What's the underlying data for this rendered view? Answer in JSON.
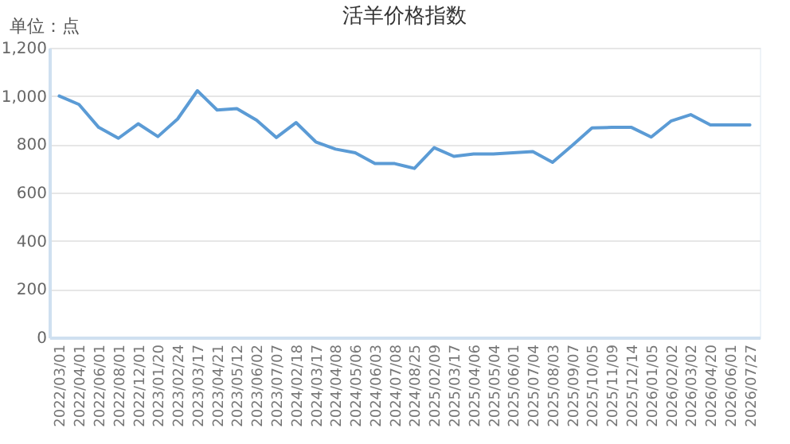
{
  "chart_data": {
    "type": "line",
    "title": "活羊价格指数",
    "annotations": [
      "单位：点"
    ],
    "categories": [
      "2022/03/01",
      "2022/04/01",
      "2022/06/01",
      "2022/08/01",
      "2022/12/01",
      "2023/01/20",
      "2023/02/24",
      "2023/03/17",
      "2023/04/21",
      "2023/05/12",
      "2023/06/02",
      "2023/07/07",
      "2024/02/18",
      "2024/03/17",
      "2024/04/08",
      "2024/05/06",
      "2024/06/03",
      "2024/07/08",
      "2024/08/25",
      "2025/02/09",
      "2025/03/17",
      "2025/04/06",
      "2025/05/04",
      "2025/06/01",
      "2025/07/04",
      "2025/08/03",
      "2025/09/07",
      "2025/10/05",
      "2025/11/09",
      "2025/12/14",
      "2026/01/05",
      "2026/02/02",
      "2026/03/02",
      "2026/04/20",
      "2026/06/01",
      "2026/07/27"
    ],
    "series": [
      {
        "color": "#5b9bd5",
        "values": [
          1000,
          965,
          870,
          825,
          885,
          832,
          905,
          1022,
          942,
          948,
          900,
          828,
          890,
          810,
          780,
          765,
          720,
          720,
          700,
          786,
          750,
          760,
          760,
          765,
          770,
          725,
          795,
          868,
          870,
          870,
          830,
          896,
          923,
          880,
          880,
          880
        ]
      }
    ],
    "ylim": [
      0,
      1200
    ],
    "yticks": [
      0,
      200,
      400,
      600,
      800,
      {
        "value": 1000,
        "label": "1,000"
      },
      {
        "value": 1200,
        "label": "1,200"
      }
    ],
    "grid": "y",
    "marker": "none",
    "line_style": "solid"
  }
}
